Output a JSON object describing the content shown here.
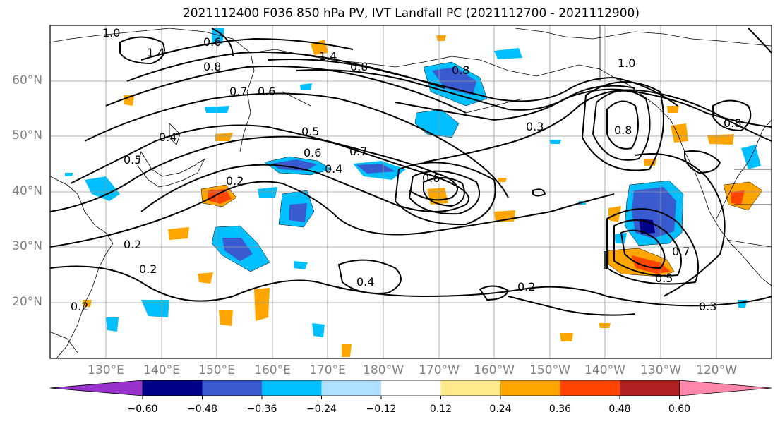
{
  "title": "2021112400 F036 850 hPa PV, IVT Landfall PC (2021112700 - 2021112900)",
  "lat_labels": [
    "60°N",
    "50°N",
    "40°N",
    "30°N",
    "20°N"
  ],
  "lon_labels": [
    "130°E",
    "140°E",
    "150°E",
    "160°E",
    "170°E",
    "180°W",
    "170°W",
    "160°W",
    "150°W",
    "140°W",
    "130°W",
    "120°W"
  ],
  "colorbar": {
    "ticks": [
      "−0.60",
      "−0.48",
      "−0.36",
      "−0.24",
      "−0.12",
      "0.12",
      "0.24",
      "0.36",
      "0.48",
      "0.60"
    ],
    "colors": [
      "#9932cc",
      "#00008b",
      "#3a5bd0",
      "#00bfff",
      "#b0e0ff",
      "#ffffff",
      "#ffe98a",
      "#ffa500",
      "#ff4500",
      "#b22222",
      "#ff88aa"
    ]
  },
  "contour_labels": [
    "1.0",
    "1.4",
    "0.8",
    "0.6",
    "1.4",
    "0.8",
    "0.7",
    "0.6",
    "0.8",
    "1.0",
    "0.7",
    "0.5",
    "0.6",
    "0.4",
    "0.5",
    "0.2",
    "0.6",
    "0.3",
    "0.8",
    "0.2",
    "0.2",
    "0.4",
    "0.2",
    "0.3",
    "0.2",
    "0.5",
    "0.7",
    "0.4",
    "0.8"
  ]
}
